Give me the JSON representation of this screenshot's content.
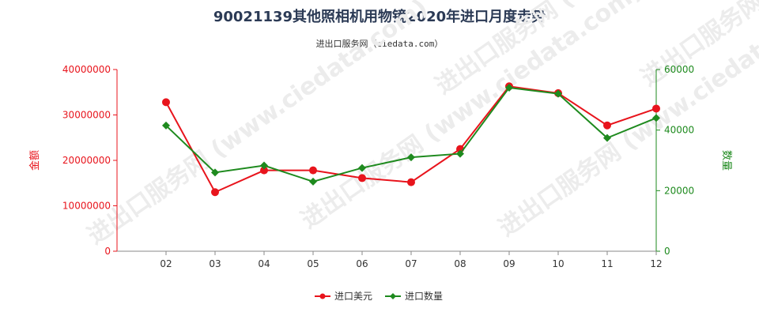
{
  "title": "90021139其他照相机用物镜2020年进口月度走势",
  "subtitle": "进出口服务网（ciedata.com）",
  "watermark": "进出口服务网 (www.ciedata.com)",
  "colors": {
    "series_value": "#e8141c",
    "series_quantity": "#1e8a1e",
    "axis_left": "#e8141c",
    "axis_right": "#1e8a1e"
  },
  "chart_data": {
    "type": "line",
    "categories": [
      "02",
      "03",
      "04",
      "05",
      "06",
      "07",
      "08",
      "09",
      "10",
      "11",
      "12"
    ],
    "y_left": {
      "label": "金额",
      "ylim": [
        0,
        40000000
      ],
      "ticks": [
        0,
        10000000,
        20000000,
        30000000,
        40000000
      ],
      "tick_labels": [
        "0",
        "10000000",
        "20000000",
        "30000000",
        "40000000"
      ]
    },
    "y_right": {
      "label": "数量",
      "ylim": [
        0,
        60000
      ],
      "ticks": [
        0,
        20000,
        40000,
        60000
      ],
      "tick_labels": [
        "0",
        "20000",
        "40000",
        "60000"
      ]
    },
    "series": [
      {
        "name": "进口美元",
        "axis": "left",
        "marker": "circle",
        "values": [
          32800000,
          13000000,
          17800000,
          17800000,
          16100000,
          15200000,
          22500000,
          36300000,
          34800000,
          27700000,
          31400000
        ]
      },
      {
        "name": "进口数量",
        "axis": "right",
        "marker": "diamond",
        "values": [
          41500,
          26000,
          28300,
          23000,
          27500,
          31000,
          32200,
          54000,
          52000,
          37400,
          44000
        ]
      }
    ],
    "legend_position": "bottom-center",
    "grid": false
  }
}
